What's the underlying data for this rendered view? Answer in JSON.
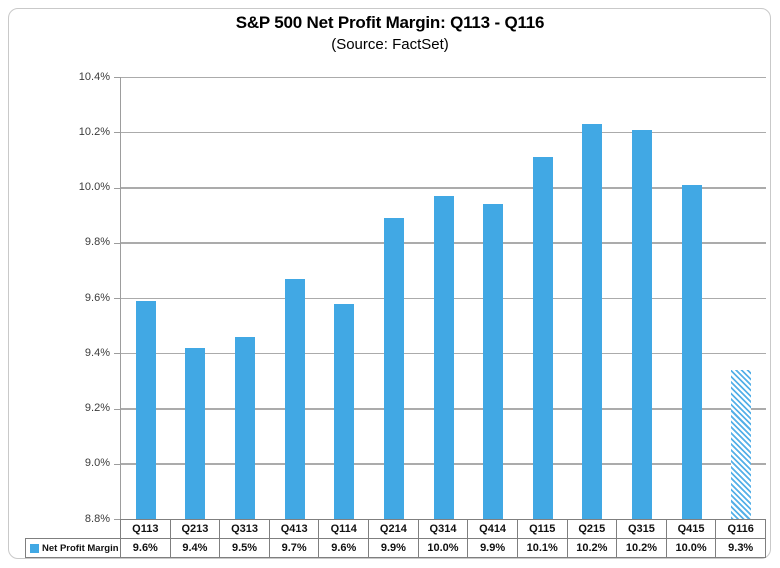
{
  "chart_data": {
    "type": "bar",
    "title": "S&P 500 Net Profit Margin: Q113 - Q116",
    "subtitle": "(Source: FactSet)",
    "categories": [
      "Q113",
      "Q213",
      "Q313",
      "Q413",
      "Q114",
      "Q214",
      "Q314",
      "Q414",
      "Q115",
      "Q215",
      "Q315",
      "Q415",
      "Q116"
    ],
    "series": [
      {
        "name": "Net Profit Margin",
        "values": [
          9.59,
          9.42,
          9.46,
          9.67,
          9.58,
          9.89,
          9.97,
          9.94,
          10.11,
          10.23,
          10.21,
          10.01,
          9.34
        ],
        "display_values": [
          "9.6%",
          "9.4%",
          "9.5%",
          "9.7%",
          "9.6%",
          "9.9%",
          "10.0%",
          "9.9%",
          "10.1%",
          "10.2%",
          "10.2%",
          "10.0%",
          "9.3%"
        ]
      }
    ],
    "ylim": [
      8.8,
      10.4
    ],
    "ytick_step": 0.2,
    "ytick_labels": [
      "10.4%",
      "10.2%",
      "10.0%",
      "9.8%",
      "9.6%",
      "9.4%",
      "9.2%",
      "9.0%",
      "8.8%"
    ],
    "grid": true,
    "legend_position": "bottom-left-of-data-table",
    "hatched_categories": [
      "Q116"
    ],
    "colors": {
      "bar": "#41A8E4",
      "hatch_stripe": "#55B0E8",
      "gridline": "#ABABAB",
      "axis_line": "#9D9D9D",
      "table_border": "#7F7F7F",
      "frame_border": "#C9C9C9",
      "text": "#000000"
    }
  }
}
